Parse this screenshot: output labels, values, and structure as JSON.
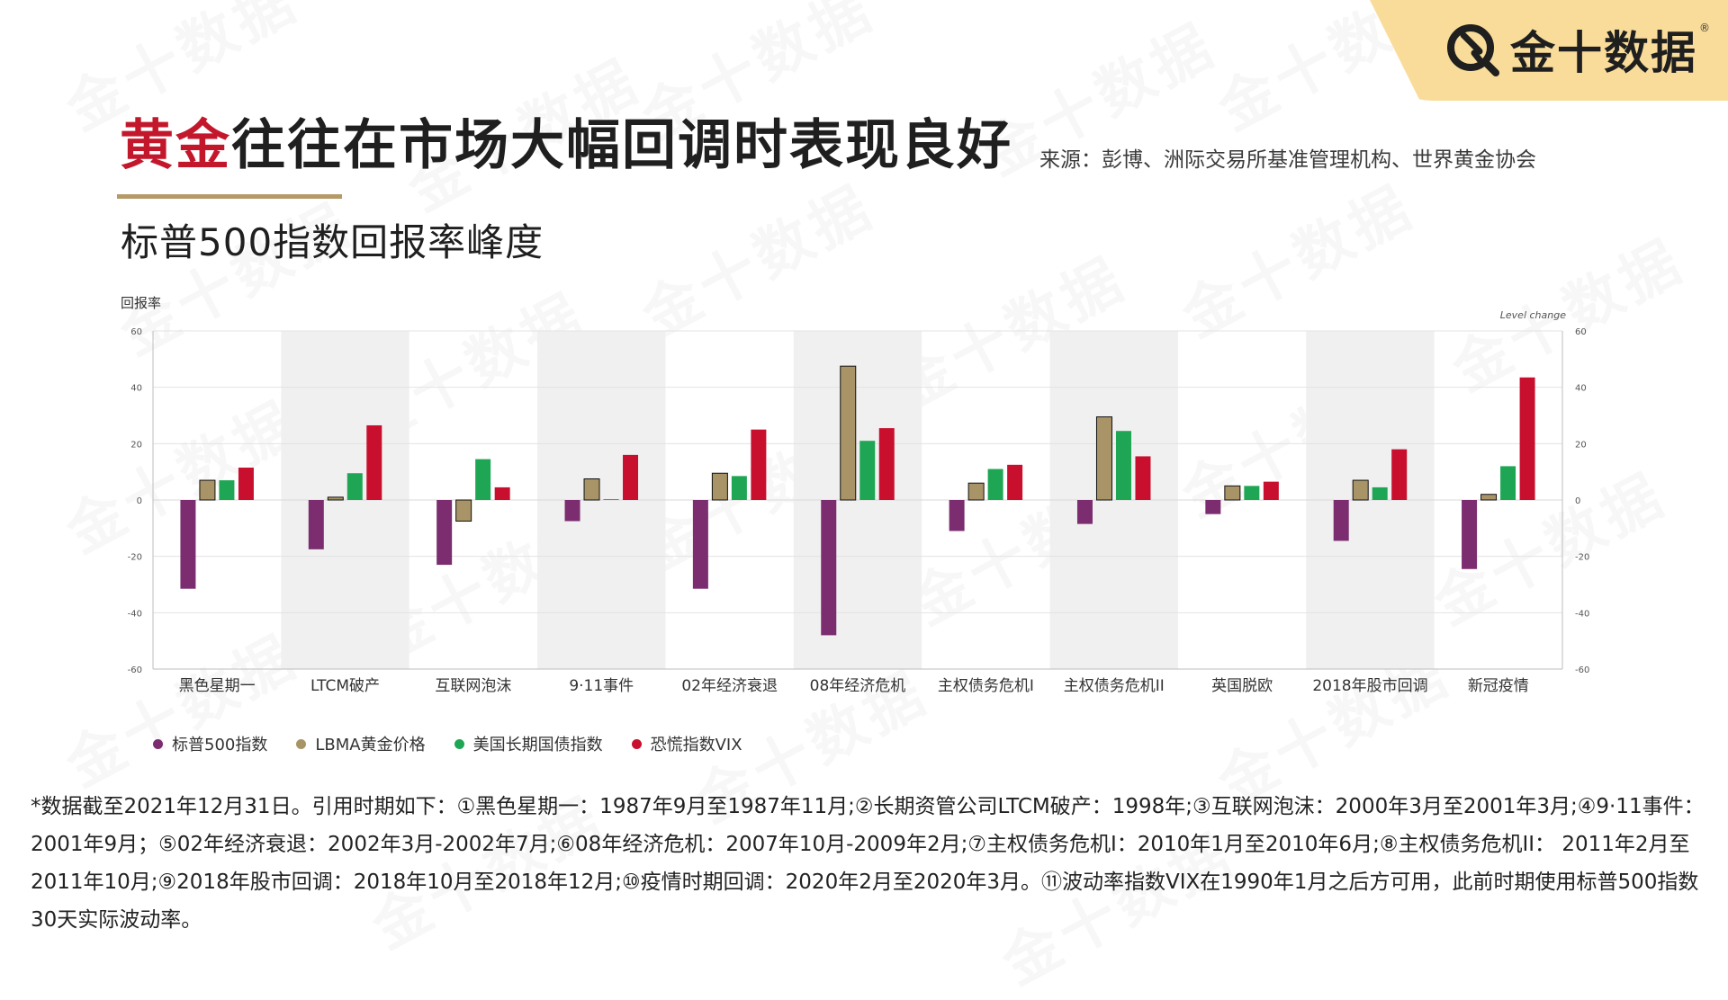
{
  "brand": {
    "name": "金十数据",
    "reg_mark": "®",
    "watermark": "金十数据",
    "colors": {
      "tab_bg": "#f9dc9a",
      "accent_red": "#c3182b",
      "underline_gold": "#b59a68"
    }
  },
  "header": {
    "title_accent": "黄金",
    "title_rest": "往往在市场大幅回调时表现良好",
    "source": "来源：彭博、洲际交易所基准管理机构、世界黄金协会",
    "subtitle": "标普500指数回报率峰度"
  },
  "chart_data": {
    "type": "bar",
    "ylabel": "回报率",
    "y2label": "Level change",
    "ylim": [
      -60,
      60
    ],
    "y2lim": [
      -60,
      60
    ],
    "yticks": [
      60,
      40,
      20,
      0,
      -20,
      -40,
      -60
    ],
    "categories": [
      "黑色星期一",
      "LTCM破产",
      "互联网泡沫",
      "9·11事件",
      "02年经济衰退",
      "08年经济危机",
      "主权债务危机I",
      "主权债务危机II",
      "英国脱欧",
      "2018年股市回调",
      "新冠疫情"
    ],
    "shaded_bands": [
      1,
      3,
      5,
      7,
      9
    ],
    "series": [
      {
        "name": "标普500指数",
        "color": "#7b2d6f",
        "values": [
          -31.5,
          -17.5,
          -23,
          -7.5,
          -31.5,
          -48,
          -11,
          -8.5,
          -5,
          -14.5,
          -24.5
        ]
      },
      {
        "name": "LBMA黄金价格",
        "color": "#a99467",
        "values": [
          7,
          1,
          -7.5,
          7.5,
          9.5,
          47.5,
          6,
          29.5,
          5,
          7,
          2
        ]
      },
      {
        "name": "美国长期国债指数",
        "color": "#1fa655",
        "values": [
          7,
          9.5,
          14.5,
          0.3,
          8.5,
          21,
          11,
          24.5,
          5,
          4.5,
          12
        ]
      },
      {
        "name": "恐慌指数VIX",
        "color": "#c8102e",
        "values": [
          11.5,
          26.5,
          4.5,
          16,
          25,
          25.5,
          12.5,
          15.5,
          6.5,
          18,
          43.5
        ]
      }
    ],
    "grid": true,
    "legend_position": "bottom-left"
  },
  "footnote": "*数据截至2021年12月31日。引用时期如下：①黑色星期一：1987年9月至1987年11月;②长期资管公司LTCM破产：1998年;③互联网泡沫：2000年3月至2001年3月;④9·11事件：2001年9月；⑤02年经济衰退：2002年3月-2002年7月;⑥08年经济危机：2007年10月-2009年2月;⑦主权债务危机I：2010年1月至2010年6月;⑧主权债务危机II： 2011年2月至2011年10月;⑨2018年股市回调：2018年10月至2018年12月;⑩疫情时期回调：2020年2月至2020年3月。⑪波动率指数VIX在1990年1月之后方可用，此前时期使用标普500指数30天实际波动率。"
}
